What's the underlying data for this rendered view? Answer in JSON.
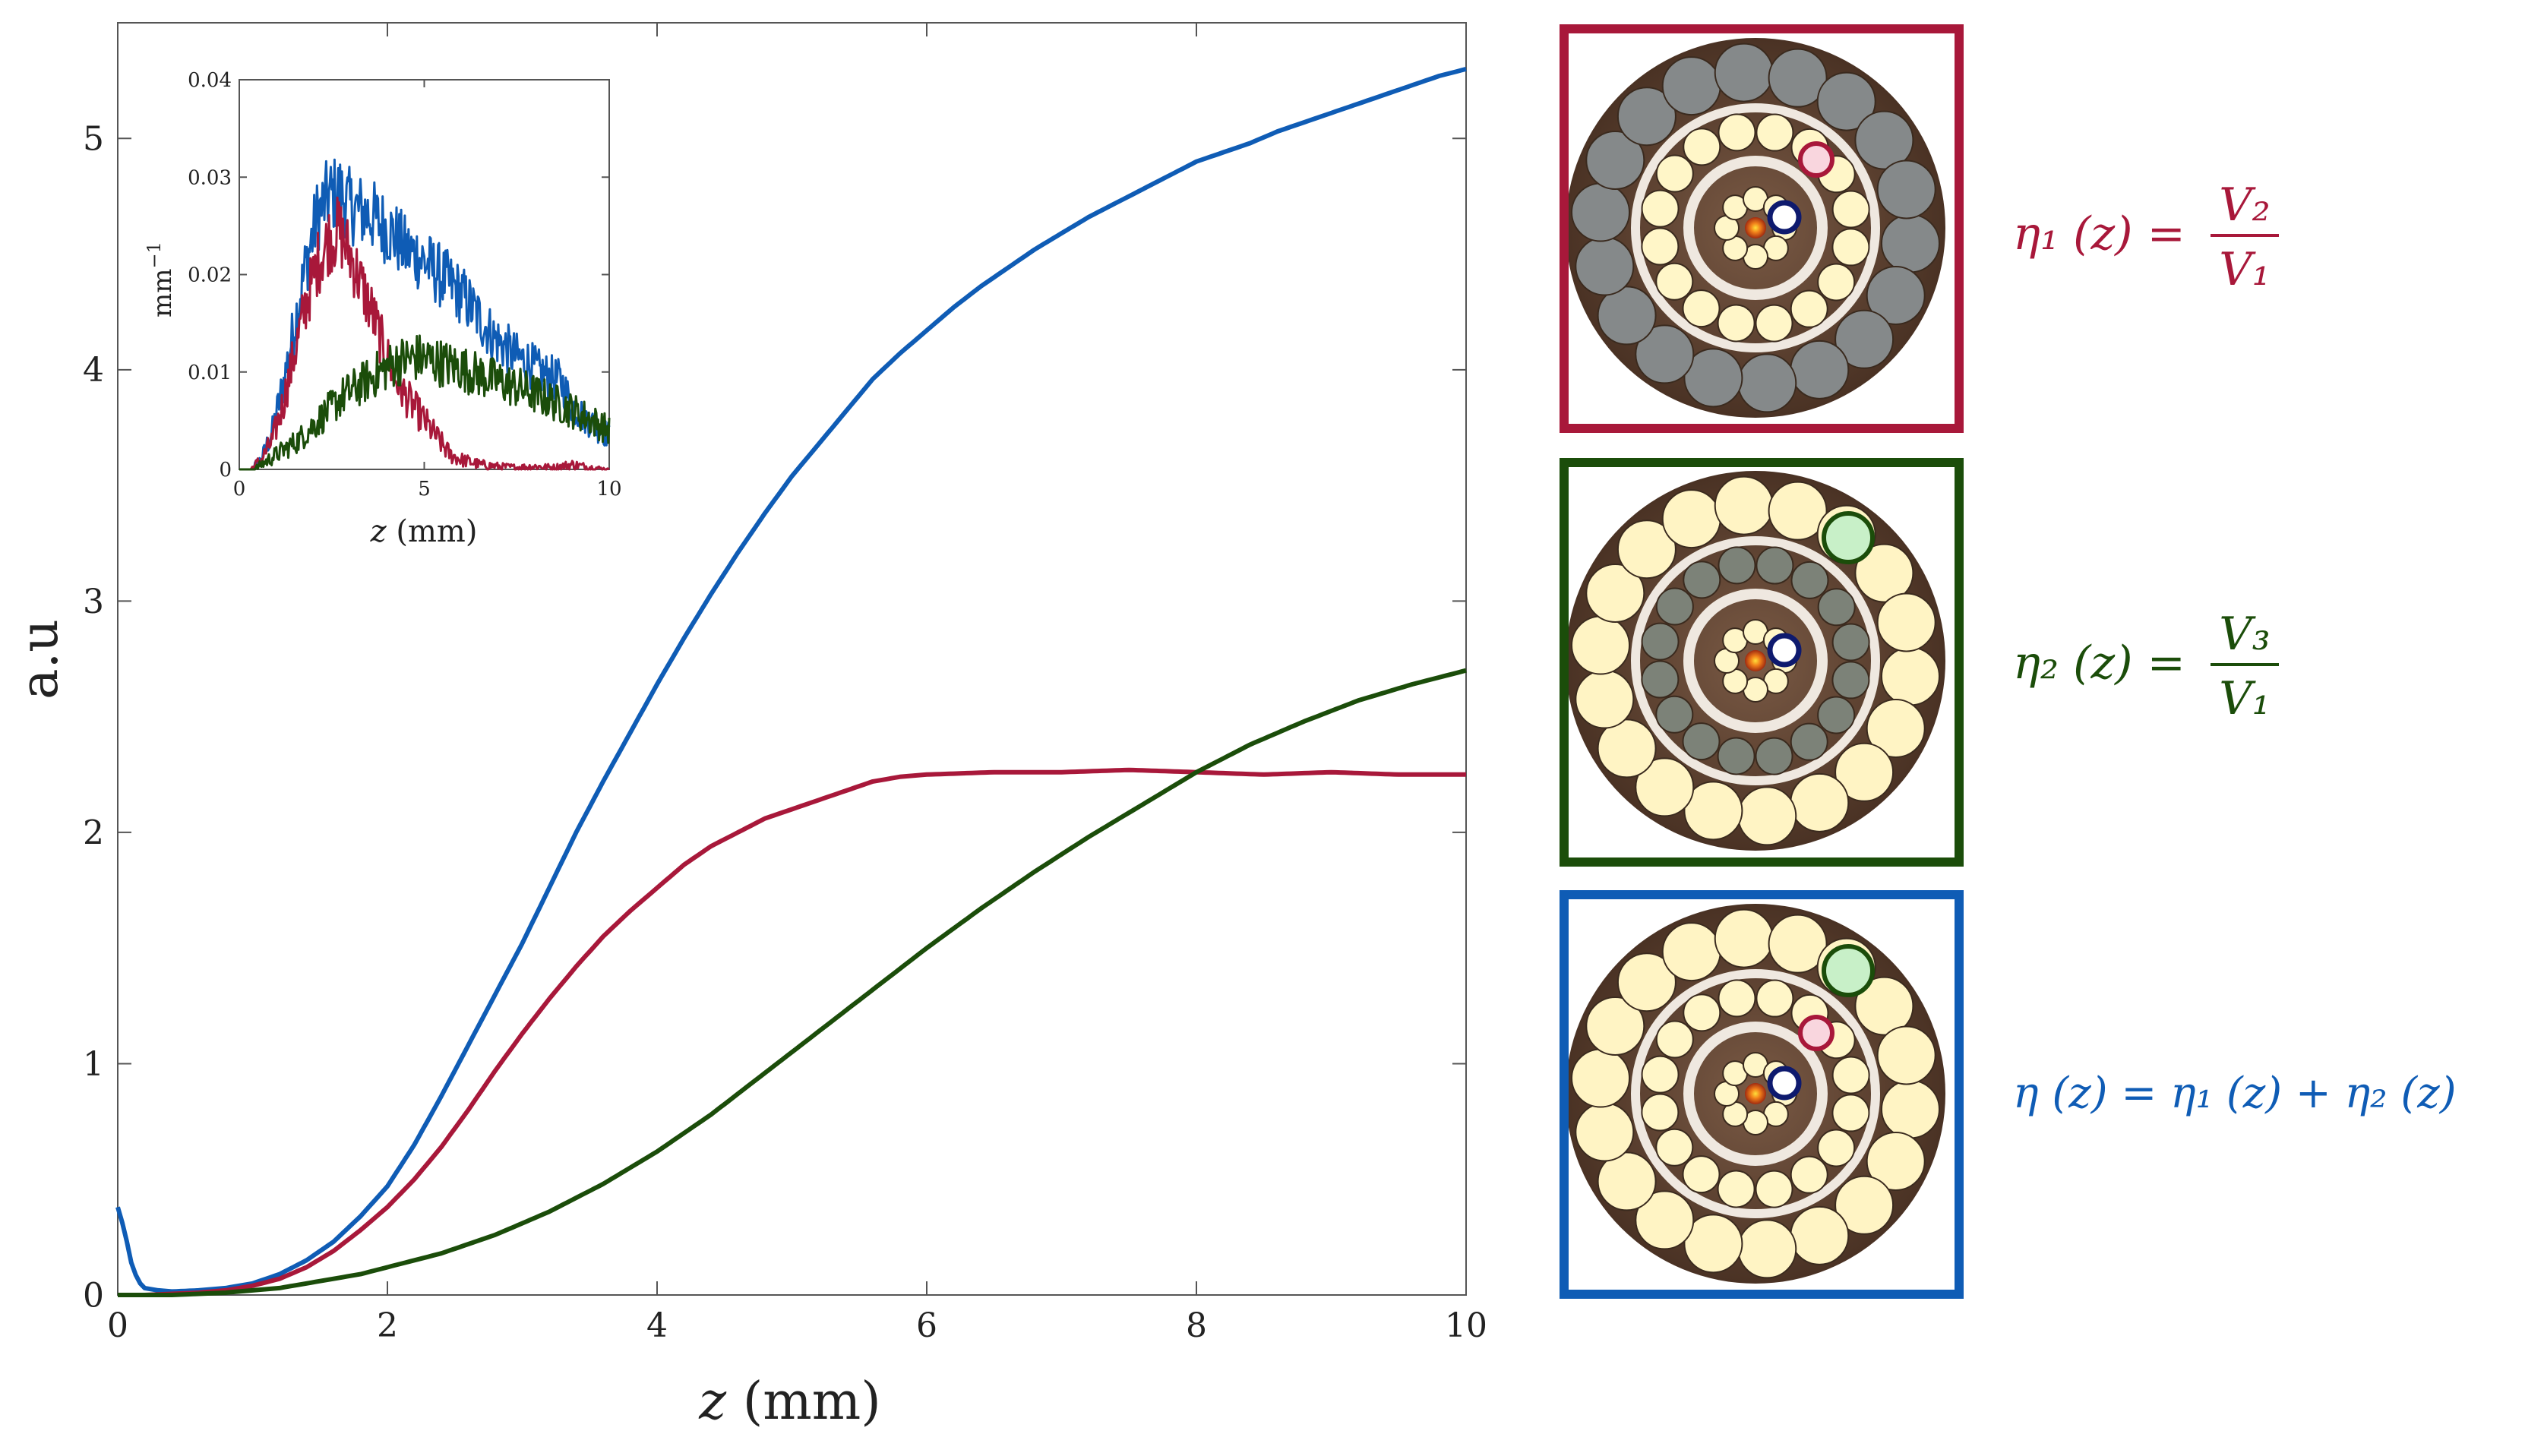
{
  "chart_data": [
    {
      "name": "main",
      "type": "line",
      "xlabel_var": "z",
      "xlabel_unit": "(mm)",
      "ylabel": "a.u",
      "xlim": [
        0,
        10
      ],
      "ylim": [
        0,
        5.5
      ],
      "xticks": [
        0,
        2,
        4,
        6,
        8,
        10
      ],
      "xtick_labels": [
        "0",
        "2",
        "4",
        "6",
        "8",
        "10"
      ],
      "yticks": [
        0,
        1,
        2,
        3,
        4,
        5
      ],
      "ytick_labels": [
        "0",
        "1",
        "2",
        "3",
        "4",
        "5"
      ],
      "series": [
        {
          "name": "η(z)",
          "color": "#0f5cb5",
          "x": [
            0,
            0.05,
            0.1,
            0.15,
            0.2,
            0.3,
            0.4,
            0.6,
            0.8,
            1.0,
            1.2,
            1.4,
            1.6,
            1.8,
            2.0,
            2.2,
            2.4,
            2.6,
            2.8,
            3.0,
            3.2,
            3.4,
            3.6,
            3.8,
            4.0,
            4.2,
            4.4,
            4.6,
            4.8,
            5.0,
            5.2,
            5.4,
            5.6,
            5.8,
            6.0,
            6.2,
            6.4,
            6.6,
            6.8,
            7.0,
            7.2,
            7.4,
            7.6,
            7.8,
            8.0,
            8.2,
            8.4,
            8.6,
            8.8,
            9.0,
            9.2,
            9.4,
            9.6,
            9.8,
            10.0
          ],
          "y": [
            0.38,
            0.28,
            0.14,
            0.06,
            0.03,
            0.02,
            0.015,
            0.02,
            0.03,
            0.05,
            0.09,
            0.15,
            0.23,
            0.34,
            0.47,
            0.65,
            0.86,
            1.08,
            1.3,
            1.52,
            1.76,
            2.0,
            2.22,
            2.43,
            2.64,
            2.84,
            3.03,
            3.21,
            3.38,
            3.54,
            3.68,
            3.82,
            3.96,
            4.07,
            4.17,
            4.27,
            4.36,
            4.44,
            4.52,
            4.59,
            4.66,
            4.72,
            4.78,
            4.84,
            4.9,
            4.94,
            4.98,
            5.03,
            5.07,
            5.11,
            5.15,
            5.19,
            5.23,
            5.27,
            5.3
          ]
        },
        {
          "name": "η1(z)",
          "color": "#a8183a",
          "x": [
            0,
            0.2,
            0.4,
            0.6,
            0.8,
            1.0,
            1.2,
            1.4,
            1.6,
            1.8,
            2.0,
            2.2,
            2.4,
            2.6,
            2.8,
            3.0,
            3.2,
            3.4,
            3.6,
            3.8,
            4.0,
            4.2,
            4.4,
            4.6,
            4.8,
            5.0,
            5.2,
            5.4,
            5.6,
            5.8,
            6.0,
            6.5,
            7.0,
            7.5,
            8.0,
            8.5,
            9.0,
            9.5,
            10.0
          ],
          "y": [
            0.0,
            0.0,
            0.005,
            0.01,
            0.02,
            0.04,
            0.07,
            0.12,
            0.19,
            0.28,
            0.38,
            0.5,
            0.64,
            0.8,
            0.97,
            1.13,
            1.28,
            1.42,
            1.55,
            1.66,
            1.76,
            1.86,
            1.94,
            2.0,
            2.06,
            2.1,
            2.14,
            2.18,
            2.22,
            2.24,
            2.25,
            2.26,
            2.26,
            2.27,
            2.26,
            2.25,
            2.26,
            2.25,
            2.25
          ]
        },
        {
          "name": "η2(z)",
          "color": "#1b4d0a",
          "x": [
            0,
            0.4,
            0.8,
            1.0,
            1.2,
            1.4,
            1.6,
            1.8,
            2.0,
            2.4,
            2.8,
            3.2,
            3.6,
            4.0,
            4.4,
            4.8,
            5.2,
            5.6,
            6.0,
            6.4,
            6.8,
            7.2,
            7.6,
            8.0,
            8.4,
            8.8,
            9.2,
            9.6,
            10.0
          ],
          "y": [
            0.0,
            0.0,
            0.01,
            0.02,
            0.03,
            0.05,
            0.07,
            0.09,
            0.12,
            0.18,
            0.26,
            0.36,
            0.48,
            0.62,
            0.78,
            0.96,
            1.14,
            1.32,
            1.5,
            1.67,
            1.83,
            1.98,
            2.12,
            2.26,
            2.38,
            2.48,
            2.57,
            2.64,
            2.7
          ]
        }
      ]
    },
    {
      "name": "inset",
      "type": "line",
      "xlabel_var": "z",
      "xlabel_unit": "(mm)",
      "ylabel": "mm",
      "ylabel_exp": "−1",
      "xlim": [
        0,
        10
      ],
      "ylim": [
        0,
        0.04
      ],
      "xticks": [
        0,
        5,
        10
      ],
      "xtick_labels": [
        "0",
        "5",
        "10"
      ],
      "yticks": [
        0,
        0.01,
        0.02,
        0.03,
        0.04
      ],
      "ytick_labels": [
        "0",
        "0.01",
        "0.02",
        "0.03",
        "0.04"
      ],
      "series": [
        {
          "name": "blue",
          "color": "#0f5cb5",
          "x": [
            0,
            0.3,
            0.6,
            0.9,
            1.2,
            1.5,
            1.8,
            2.1,
            2.4,
            2.7,
            3.0,
            3.3,
            3.6,
            3.9,
            4.2,
            4.5,
            4.8,
            5.1,
            5.4,
            5.7,
            6.0,
            6.3,
            6.6,
            6.9,
            7.2,
            7.5,
            7.8,
            8.1,
            8.4,
            8.7,
            9.0,
            9.3,
            9.6,
            10.0
          ],
          "y": [
            0.0,
            0.0,
            0.001,
            0.004,
            0.009,
            0.015,
            0.021,
            0.026,
            0.028,
            0.0285,
            0.027,
            0.0265,
            0.026,
            0.025,
            0.024,
            0.0225,
            0.022,
            0.021,
            0.02,
            0.019,
            0.018,
            0.0165,
            0.015,
            0.0135,
            0.0125,
            0.0115,
            0.011,
            0.01,
            0.0095,
            0.009,
            0.0065,
            0.0055,
            0.0045,
            0.0035
          ]
        },
        {
          "name": "red",
          "color": "#a8183a",
          "x": [
            0,
            0.3,
            0.6,
            0.9,
            1.2,
            1.5,
            1.8,
            2.1,
            2.4,
            2.7,
            3.0,
            3.3,
            3.6,
            3.9,
            4.2,
            4.5,
            4.8,
            5.1,
            5.4,
            5.7,
            6.0,
            6.5,
            7.0,
            7.5,
            8.0,
            8.5,
            9.0,
            9.5,
            10.0
          ],
          "y": [
            0.0,
            0.0,
            0.001,
            0.003,
            0.007,
            0.012,
            0.017,
            0.021,
            0.0235,
            0.0245,
            0.022,
            0.019,
            0.016,
            0.0125,
            0.0095,
            0.0075,
            0.006,
            0.0045,
            0.003,
            0.0015,
            0.001,
            0.0005,
            0.0003,
            0.0002,
            0.0003,
            0.0002,
            0.0005,
            0.0002,
            0.0
          ]
        },
        {
          "name": "green",
          "color": "#1b4d0a",
          "x": [
            0,
            0.4,
            0.8,
            1.2,
            1.6,
            2.0,
            2.4,
            2.8,
            3.2,
            3.6,
            4.0,
            4.4,
            4.8,
            5.2,
            5.6,
            6.0,
            6.4,
            6.8,
            7.2,
            7.6,
            8.0,
            8.4,
            8.8,
            9.2,
            9.6,
            10.0
          ],
          "y": [
            0.0,
            0.0,
            0.001,
            0.002,
            0.003,
            0.0045,
            0.006,
            0.0075,
            0.0085,
            0.0095,
            0.0105,
            0.0112,
            0.0115,
            0.0112,
            0.0108,
            0.0104,
            0.0098,
            0.0093,
            0.0088,
            0.0083,
            0.0077,
            0.0071,
            0.0064,
            0.0057,
            0.0049,
            0.004
          ]
        }
      ]
    }
  ],
  "panels": [
    {
      "color": "#a8183a",
      "eta_sub": "1",
      "rhs_num": "V",
      "rhs_num_sub": "2",
      "rhs_den": "V",
      "rhs_den_sub": "1"
    },
    {
      "color": "#1b4d0a",
      "eta_sub": "2",
      "rhs_num": "V",
      "rhs_num_sub": "3",
      "rhs_den": "V",
      "rhs_den_sub": "1"
    },
    {
      "color": "#0f5cb5",
      "eta_sub": "",
      "sum_text": "= η₁ (z) + η₂ (z)"
    }
  ],
  "formulas": {
    "f1": {
      "lhs": "η₁ (z) =",
      "num": "V₂",
      "den": "V₁"
    },
    "f2": {
      "lhs": "η₂ (z) =",
      "num": "V₃",
      "den": "V₁"
    },
    "f3": {
      "text": "η (z) = η₁ (z) + η₂ (z)"
    }
  },
  "colors": {
    "red": "#a8183a",
    "green": "#1b4d0a",
    "blue": "#0f5cb5",
    "axis": "#555555"
  }
}
